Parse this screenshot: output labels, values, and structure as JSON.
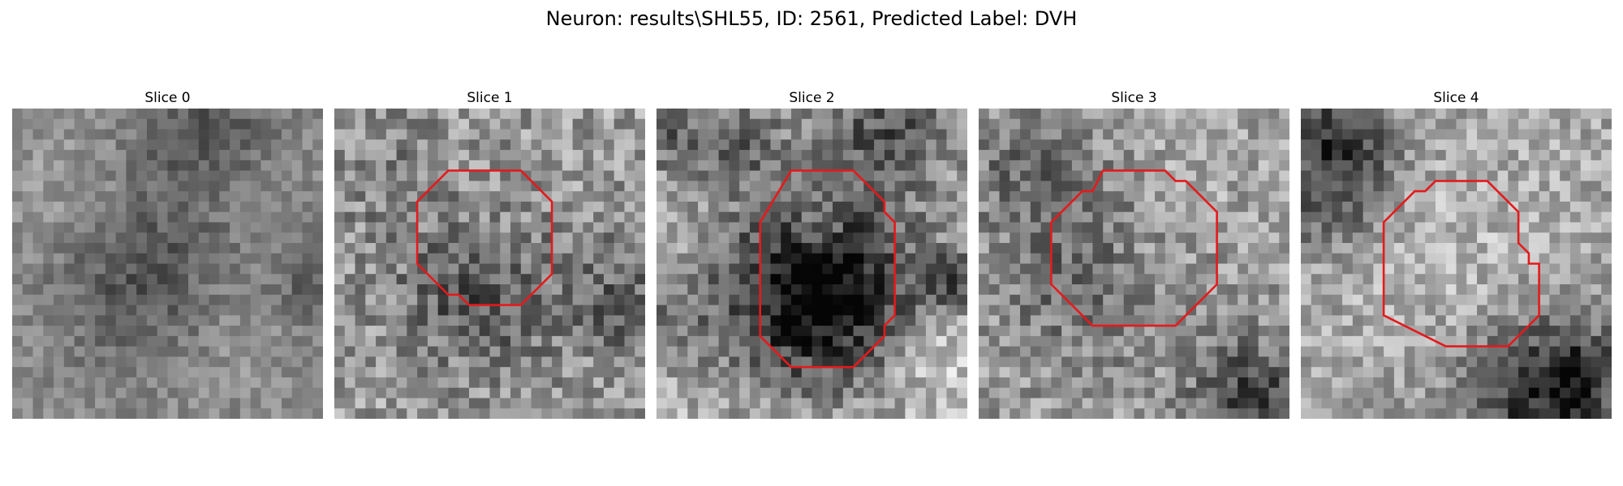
{
  "figure": {
    "title": "Neuron: results\\SHL55, ID: 2561, Predicted Label: DVH",
    "outline_color": "#e41a1c"
  },
  "panels": [
    {
      "title": "Slice 0",
      "has_outline": false,
      "darkness": 0.8,
      "contrast": 0.9
    },
    {
      "title": "Slice 1",
      "has_outline": true,
      "darkness": 1.0,
      "contrast": 1.3
    },
    {
      "title": "Slice 2",
      "has_outline": true,
      "darkness": 1.0,
      "contrast": 1.2
    },
    {
      "title": "Slice 3",
      "has_outline": true,
      "darkness": 1.0,
      "contrast": 1.2
    },
    {
      "title": "Slice 4",
      "has_outline": true,
      "darkness": 1.0,
      "contrast": 1.1
    }
  ]
}
